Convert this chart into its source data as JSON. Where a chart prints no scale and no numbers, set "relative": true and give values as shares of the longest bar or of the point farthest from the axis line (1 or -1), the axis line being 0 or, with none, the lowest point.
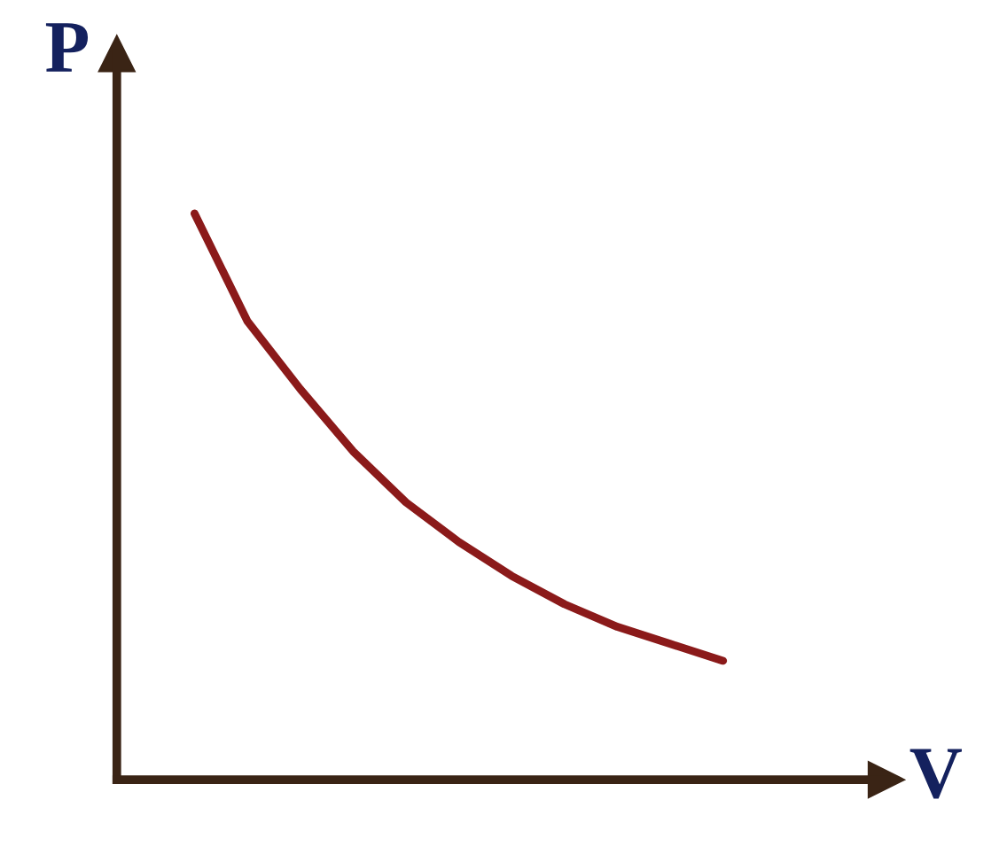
{
  "chart_data": {
    "type": "line",
    "relative": true,
    "xlabel": "V",
    "ylabel": "P",
    "categories": [
      null,
      null,
      null,
      null,
      null,
      null,
      null,
      null,
      null,
      null,
      null
    ],
    "series": [
      {
        "color": "#8b1a1a",
        "values": [
          1,
          0.81,
          0.69,
          0.58,
          0.49,
          0.42,
          0.36,
          0.31,
          0.27,
          0.24,
          0.21
        ]
      }
    ],
    "grid": false,
    "legend": false,
    "marker": "none",
    "line_style": "solid"
  }
}
